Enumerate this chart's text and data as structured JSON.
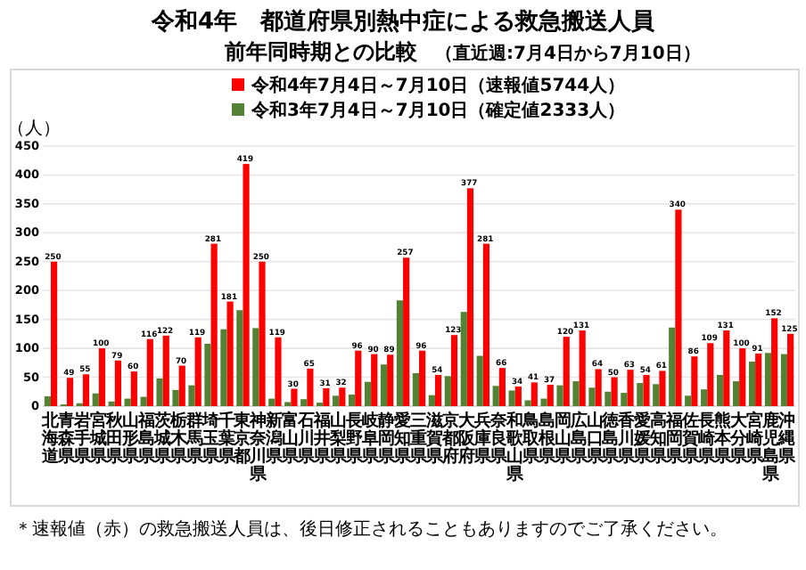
{
  "chart_data": {
    "type": "bar",
    "title": "令和4年　都道府県別熱中症による救急搬送人員",
    "subtitle": "前年同時期との比較",
    "ylabel": "（人）",
    "categories": [
      "北海道",
      "青森県",
      "岩手県",
      "宮城県",
      "秋田県",
      "山形県",
      "福島県",
      "茨城県",
      "栃木県",
      "群馬県",
      "埼玉県",
      "千葉県",
      "東京都",
      "神奈川県",
      "新潟県",
      "富山県",
      "石川県",
      "福井県",
      "山梨県",
      "長野県",
      "岐阜県",
      "静岡県",
      "愛知県",
      "三重県",
      "滋賀県",
      "京都府",
      "大阪府",
      "兵庫県",
      "奈良県",
      "和歌山県",
      "鳥取県",
      "島根県",
      "岡山県",
      "広島県",
      "山口県",
      "徳島県",
      "香川県",
      "愛媛県",
      "高知県",
      "福岡県",
      "佐賀県",
      "長崎県",
      "熊本県",
      "大分県",
      "宮崎県",
      "鹿児島県",
      "沖縄県"
    ],
    "series": [
      {
        "name": "令和4年7月4日～7月10日（速報値5744人）",
        "color": "#ff0000",
        "values": [
          250,
          49,
          55,
          100,
          79,
          60,
          116,
          122,
          70,
          119,
          281,
          181,
          419,
          250,
          119,
          30,
          65,
          31,
          32,
          96,
          90,
          89,
          257,
          96,
          54,
          123,
          377,
          281,
          66,
          34,
          41,
          37,
          120,
          131,
          64,
          50,
          63,
          54,
          61,
          340,
          86,
          109,
          131,
          100,
          91,
          152,
          125
        ],
        "value_labels": [
          "250",
          "49",
          "55",
          "100",
          "79",
          "60",
          "116",
          "122",
          "70",
          "119",
          "281",
          "181",
          "419",
          "250",
          "119",
          "30",
          "65",
          "31",
          "32",
          "96",
          "90",
          "89",
          "257",
          "96",
          "54",
          "123",
          "377",
          "281",
          "66",
          "34",
          "41",
          "37",
          "120",
          "131",
          "64",
          "50",
          "63",
          "54",
          "61",
          "340",
          "86",
          "109",
          "131",
          "100",
          "91",
          "152",
          "125"
        ]
      },
      {
        "name": "令和3年7月4日～7月10日（確定値2333人）",
        "color": "#548235",
        "values": [
          17,
          3,
          5,
          22,
          8,
          13,
          16,
          48,
          28,
          36,
          108,
          133,
          166,
          135,
          13,
          7,
          12,
          6,
          18,
          20,
          42,
          72,
          183,
          57,
          19,
          52,
          163,
          87,
          35,
          27,
          10,
          13,
          36,
          43,
          32,
          25,
          23,
          40,
          38,
          136,
          18,
          29,
          54,
          43,
          77,
          92,
          90
        ]
      }
    ],
    "ylim": [
      0,
      450
    ],
    "yticks": [
      0,
      50,
      100,
      150,
      200,
      250,
      300,
      350,
      400,
      450
    ],
    "grid": "y",
    "legend": "top",
    "annotations": [
      "（直近週:7月4日から7月10日）",
      "＊速報値（赤）の救急搬送人員は、後日修正されることもありますのでご了承ください。"
    ]
  }
}
